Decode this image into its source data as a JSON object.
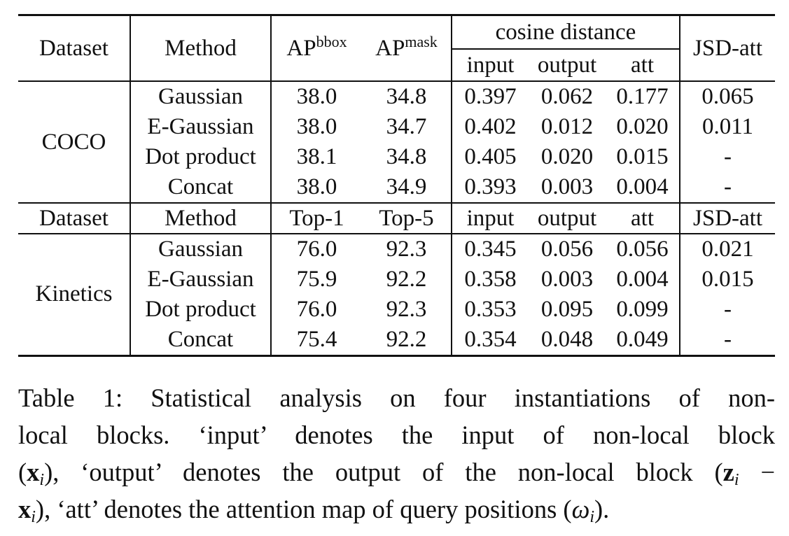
{
  "table": {
    "header1": {
      "dataset": "Dataset",
      "method": "Method",
      "ap_bbox_base": "AP",
      "ap_bbox_sup": "bbox",
      "ap_mask_base": "AP",
      "ap_mask_sup": "mask",
      "cosine_distance": "cosine distance",
      "input": "input",
      "output": "output",
      "att": "att",
      "jsd_att": "JSD-att"
    },
    "coco": {
      "dataset": "COCO",
      "rows": [
        {
          "method": "Gaussian",
          "m1": "38.0",
          "m2": "34.8",
          "input": "0.397",
          "output": "0.062",
          "att": "0.177",
          "jsd": "0.065"
        },
        {
          "method": "E-Gaussian",
          "m1": "38.0",
          "m2": "34.7",
          "input": "0.402",
          "output": "0.012",
          "att": "0.020",
          "jsd": "0.011"
        },
        {
          "method": "Dot product",
          "m1": "38.1",
          "m2": "34.8",
          "input": "0.405",
          "output": "0.020",
          "att": "0.015",
          "jsd": "-"
        },
        {
          "method": "Concat",
          "m1": "38.0",
          "m2": "34.9",
          "input": "0.393",
          "output": "0.003",
          "att": "0.004",
          "jsd": "-"
        }
      ]
    },
    "header2": {
      "dataset": "Dataset",
      "method": "Method",
      "top1": "Top-1",
      "top5": "Top-5",
      "input": "input",
      "output": "output",
      "att": "att",
      "jsd_att": "JSD-att"
    },
    "kinetics": {
      "dataset": "Kinetics",
      "rows": [
        {
          "method": "Gaussian",
          "m1": "76.0",
          "m2": "92.3",
          "input": "0.345",
          "output": "0.056",
          "att": "0.056",
          "jsd": "0.021"
        },
        {
          "method": "E-Gaussian",
          "m1": "75.9",
          "m2": "92.2",
          "input": "0.358",
          "output": "0.003",
          "att": "0.004",
          "jsd": "0.015"
        },
        {
          "method": "Dot product",
          "m1": "76.0",
          "m2": "92.3",
          "input": "0.353",
          "output": "0.095",
          "att": "0.099",
          "jsd": "-"
        },
        {
          "method": "Concat",
          "m1": "75.4",
          "m2": "92.2",
          "input": "0.354",
          "output": "0.048",
          "att": "0.049",
          "jsd": "-"
        }
      ]
    }
  },
  "caption": {
    "line1": "Table 1: Statistical analysis on four instantiations of non-",
    "line2": "local blocks. ‘input’ denotes the input of non-local block",
    "line3_a": "(",
    "line3_x": "x",
    "line3_i": "i",
    "line3_b": "), ‘output’ denotes the output of the non-local block (",
    "line3_z": "z",
    "line3_zi": "i",
    "line3_c": " −",
    "line4_x": "x",
    "line4_i": "i",
    "line4_b": "), ‘att’ denotes the attention map of query positions (",
    "line4_omega": "ω",
    "line4_oi": "i",
    "line4_c": ")."
  }
}
